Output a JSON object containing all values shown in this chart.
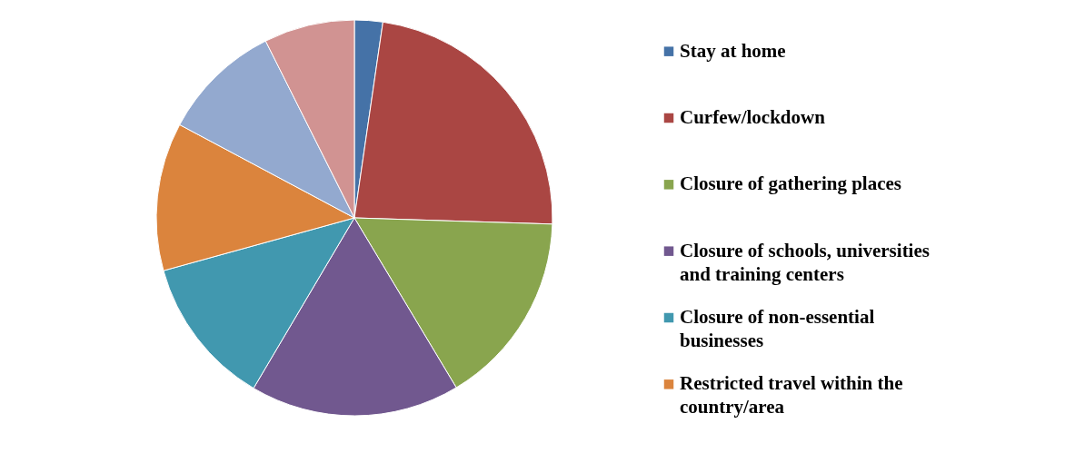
{
  "chart_data": {
    "type": "pie",
    "categories": [
      "Stay at home",
      "Curfew/lockdown",
      "Closure of gathering places",
      "Closure of schools, universities and training centers",
      "Closure of non-essential businesses",
      "Restricted travel within the country/area",
      null,
      null
    ],
    "values": [
      2.3,
      23.2,
      15.9,
      17.1,
      12.2,
      12.1,
      9.8,
      7.4
    ],
    "colors": [
      "#4572a7",
      "#aa4643",
      "#89a54e",
      "#71588f",
      "#4198af",
      "#db843d",
      "#93a9cf",
      "#d19392"
    ],
    "legend": "right"
  }
}
